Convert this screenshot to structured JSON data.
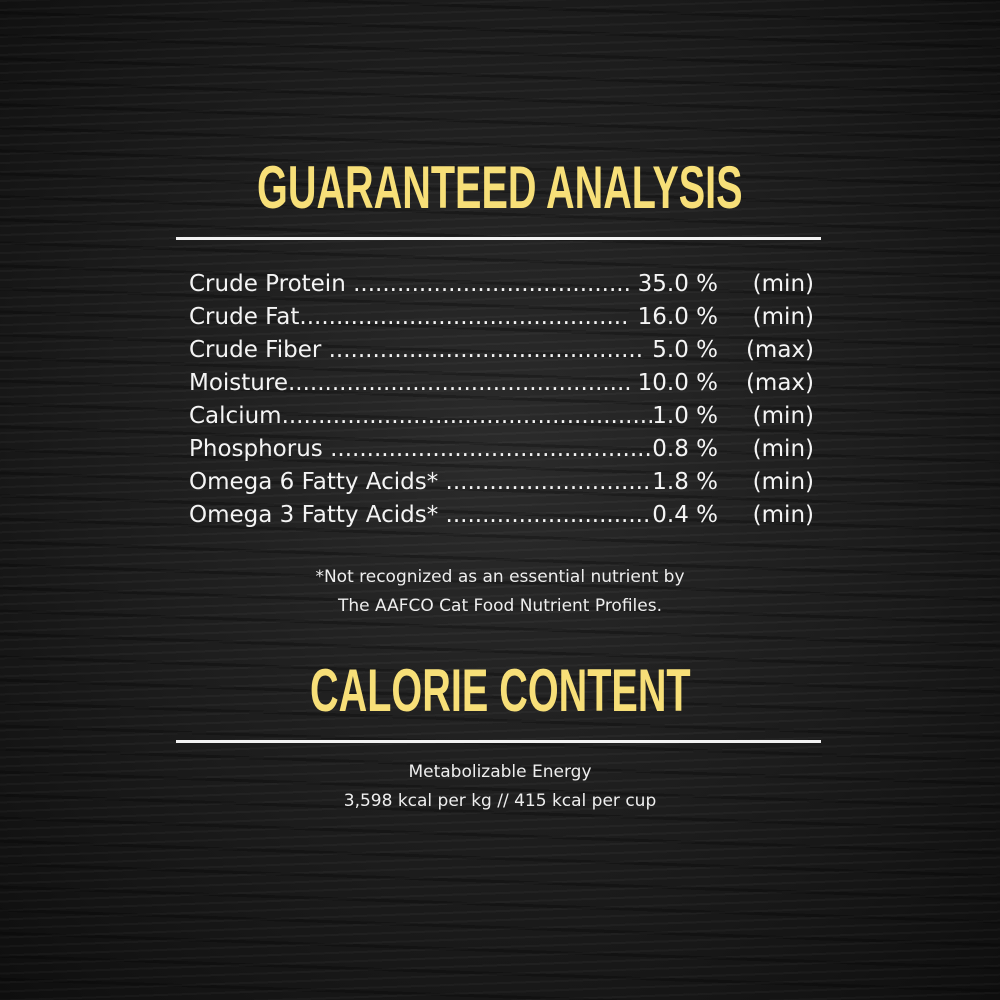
{
  "guaranteed_analysis": {
    "title": "GUARANTEED ANALYSIS",
    "rows": [
      {
        "name": "Crude Protein ",
        "value": " 35.0 %",
        "qualifier": "(min)"
      },
      {
        "name": "Crude Fat",
        "value": " 16.0 %",
        "qualifier": "(min)"
      },
      {
        "name": "Crude Fiber ",
        "value": " 5.0 %",
        "qualifier": "(max)"
      },
      {
        "name": "Moisture",
        "value": " 10.0 %",
        "qualifier": "(max)"
      },
      {
        "name": "Calcium",
        "value": "1.0 %",
        "qualifier": "(min)"
      },
      {
        "name": "Phosphorus ",
        "value": "0.8 %",
        "qualifier": "(min)"
      },
      {
        "name": "Omega 6 Fatty Acids* ",
        "value": "1.8 %",
        "qualifier": "(min)"
      },
      {
        "name": "Omega 3 Fatty Acids* ",
        "value": "0.4 %",
        "qualifier": "(min)"
      }
    ],
    "footnote_line1": "*Not recognized as an essential nutrient by",
    "footnote_line2": "The AAFCO Cat Food Nutrient Profiles."
  },
  "calorie_content": {
    "title": "CALORIE CONTENT",
    "label": "Metabolizable Energy",
    "values": "3,598 kcal per kg  //  415 kcal per cup"
  },
  "colors": {
    "heading": "#f7df78",
    "background": "#1b1b1b",
    "text": "#ffffff"
  }
}
